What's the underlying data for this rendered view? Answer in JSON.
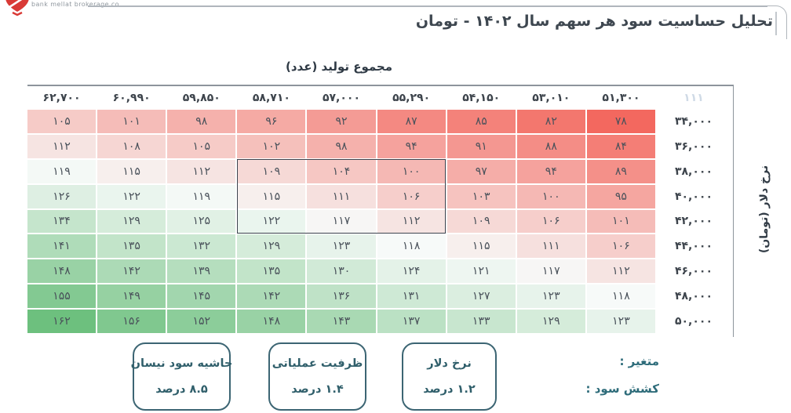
{
  "logo": {
    "text": "bank mellat brokerage co",
    "accent_color": "#d93a36"
  },
  "title": "تحلیل حساسیت سود هر سهم سال ۱۴۰۲ - تومان",
  "chart_data": {
    "type": "heatmap",
    "title": "تحلیل حساسیت سود هر سهم سال ۱۴۰۲ - تومان",
    "x_axis_title": "مجموع تولید (عدد)",
    "y_axis_title": "نرخ دلار (تومان)",
    "columns": [
      62700,
      60990,
      59850,
      58710,
      57000,
      55290,
      54150,
      53010,
      51300
    ],
    "columns_display": [
      "۶۲,۷۰۰",
      "۶۰,۹۹۰",
      "۵۹,۸۵۰",
      "۵۸,۷۱۰",
      "۵۷,۰۰۰",
      "۵۵,۲۹۰",
      "۵۴,۱۵۰",
      "۵۳,۰۱۰",
      "۵۱,۳۰۰"
    ],
    "rows": [
      34000,
      36000,
      38000,
      40000,
      42000,
      44000,
      46000,
      48000,
      50000
    ],
    "rows_display": [
      "۳۴,۰۰۰",
      "۳۶,۰۰۰",
      "۳۸,۰۰۰",
      "۴۰,۰۰۰",
      "۴۲,۰۰۰",
      "۴۴,۰۰۰",
      "۴۶,۰۰۰",
      "۴۸,۰۰۰",
      "۵۰,۰۰۰"
    ],
    "corner_value_display": "۱۱۱",
    "values": [
      [
        105,
        101,
        98,
        96,
        92,
        87,
        85,
        82,
        78
      ],
      [
        112,
        108,
        105,
        102,
        98,
        94,
        91,
        88,
        84
      ],
      [
        119,
        115,
        112,
        109,
        104,
        100,
        97,
        94,
        89
      ],
      [
        126,
        122,
        119,
        115,
        111,
        106,
        103,
        100,
        95
      ],
      [
        134,
        129,
        125,
        122,
        117,
        112,
        109,
        106,
        101
      ],
      [
        141,
        135,
        132,
        129,
        123,
        118,
        115,
        111,
        106
      ],
      [
        148,
        142,
        139,
        135,
        130,
        124,
        121,
        117,
        112
      ],
      [
        155,
        149,
        145,
        142,
        136,
        131,
        127,
        123,
        118
      ],
      [
        162,
        156,
        152,
        148,
        143,
        137,
        133,
        129,
        123
      ]
    ],
    "colorscale": {
      "min": 78,
      "mid": 118,
      "max": 162,
      "red": "#f3685f",
      "white": "#f7faf9",
      "green": "#6dc07e"
    },
    "highlight_box": {
      "col_start_index": 3,
      "col_end_index": 5,
      "row_start_index": 2,
      "row_end_index": 4
    },
    "base_case_value": 111,
    "grid": "white gridlines",
    "legend_position": "bottom"
  },
  "legend": {
    "row_labels": [
      "متغیر :",
      "کشش سود :"
    ],
    "boxes": [
      {
        "name": "نرخ دلار",
        "value": "۱.۲ درصد"
      },
      {
        "name": "ظرفیت عملیاتی",
        "value": "۱.۴ درصد"
      },
      {
        "name": "حاشیه سود نیسان",
        "value": "۸.۵ درصد"
      }
    ]
  }
}
